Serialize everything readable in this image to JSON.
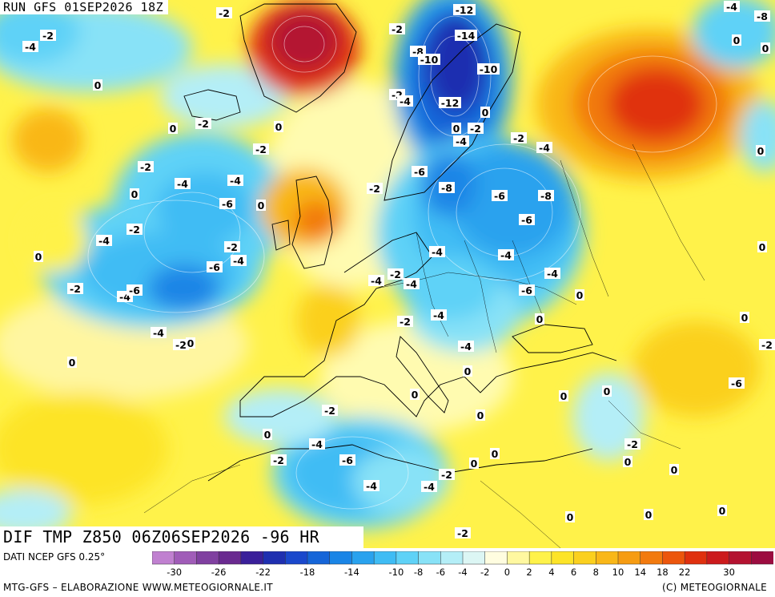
{
  "header": {
    "run_label": "RUN GFS 01SEP2026 18Z"
  },
  "map": {
    "field_title": "DIF TMP Z850 06Z06SEP2026 -96 HR",
    "region": "Europe / North Atlantic / North Africa",
    "colors": {
      "palette": [
        "#c080d0",
        "#a05cb8",
        "#8040a0",
        "#6a2a90",
        "#3a1f9a",
        "#1e2fb0",
        "#1a48cc",
        "#1565d8",
        "#1a85e6",
        "#29a2ee",
        "#3fbcf4",
        "#5fd2f7",
        "#88e2f7",
        "#b4eef7",
        "#dcf6f4",
        "#fffde0",
        "#fff8a0",
        "#fff24a",
        "#fde428",
        "#fbd01e",
        "#f9b718",
        "#f69c12",
        "#f27a0e",
        "#ec560c",
        "#e0300e",
        "#cc1a1c",
        "#b41230",
        "#9c0c40"
      ]
    },
    "labels": [
      {
        "text": "-2"
      },
      {
        "text": "-4"
      },
      {
        "text": "-2"
      },
      {
        "text": "0"
      },
      {
        "text": "-2"
      },
      {
        "text": "0"
      },
      {
        "text": "-2"
      },
      {
        "text": "-2"
      },
      {
        "text": "-4"
      },
      {
        "text": "-4"
      },
      {
        "text": "0"
      },
      {
        "text": "-6"
      },
      {
        "text": "0"
      },
      {
        "text": "-4"
      },
      {
        "text": "-2"
      },
      {
        "text": "0"
      },
      {
        "text": "-2"
      },
      {
        "text": "-4"
      },
      {
        "text": "-6"
      },
      {
        "text": "-2"
      },
      {
        "text": "-4"
      },
      {
        "text": "-6"
      },
      {
        "text": "-4"
      },
      {
        "text": "-2"
      },
      {
        "text": "0"
      },
      {
        "text": "0"
      },
      {
        "text": "-12"
      },
      {
        "text": "-14"
      },
      {
        "text": "-8"
      },
      {
        "text": "-10"
      },
      {
        "text": "-10"
      },
      {
        "text": "-2"
      },
      {
        "text": "-4"
      },
      {
        "text": "-12"
      },
      {
        "text": "-2"
      },
      {
        "text": "-4"
      },
      {
        "text": "-2"
      },
      {
        "text": "-4"
      },
      {
        "text": "-6"
      },
      {
        "text": "-8"
      },
      {
        "text": "-6"
      },
      {
        "text": "-8"
      },
      {
        "text": "-6"
      },
      {
        "text": "-4"
      },
      {
        "text": "-4"
      },
      {
        "text": "-2"
      },
      {
        "text": "-4"
      },
      {
        "text": "-4"
      },
      {
        "text": "-6"
      },
      {
        "text": "-4"
      },
      {
        "text": "-2"
      },
      {
        "text": "-4"
      },
      {
        "text": "0"
      },
      {
        "text": "-2"
      },
      {
        "text": "-4"
      },
      {
        "text": "0"
      },
      {
        "text": "0"
      },
      {
        "text": "0"
      },
      {
        "text": "0"
      },
      {
        "text": "-2"
      },
      {
        "text": "0"
      },
      {
        "text": "-4"
      },
      {
        "text": "-6"
      },
      {
        "text": "0"
      },
      {
        "text": "-2"
      },
      {
        "text": "0"
      },
      {
        "text": "-4"
      },
      {
        "text": "-4"
      },
      {
        "text": "-2"
      },
      {
        "text": "0"
      },
      {
        "text": "-2"
      },
      {
        "text": "0"
      },
      {
        "text": "-2"
      },
      {
        "text": "0"
      },
      {
        "text": "0"
      },
      {
        "text": "0"
      },
      {
        "text": "0"
      },
      {
        "text": "0"
      },
      {
        "text": "-8"
      },
      {
        "text": "-4"
      },
      {
        "text": "0"
      },
      {
        "text": "-6"
      },
      {
        "text": "-2"
      },
      {
        "text": "0"
      },
      {
        "text": "0"
      },
      {
        "text": "0"
      },
      {
        "text": "0"
      },
      {
        "text": "0"
      },
      {
        "text": "0"
      },
      {
        "text": "0"
      },
      {
        "text": "0"
      },
      {
        "text": "-2"
      }
    ]
  },
  "colorbar": {
    "tick_labels": [
      "-30",
      "-26",
      "-22",
      "-18",
      "-14",
      "-10",
      "-8",
      "-6",
      "-4",
      "-2",
      "0",
      "2",
      "4",
      "6",
      "8",
      "10",
      "14",
      "18",
      "22",
      "30"
    ]
  },
  "footer": {
    "source": "DATI NCEP GFS 0.25°",
    "credit": "MTG-GFS – ELABORAZIONE WWW.METEOGIORNALE.IT",
    "copyright": "(C) METEOGIORNALE"
  }
}
